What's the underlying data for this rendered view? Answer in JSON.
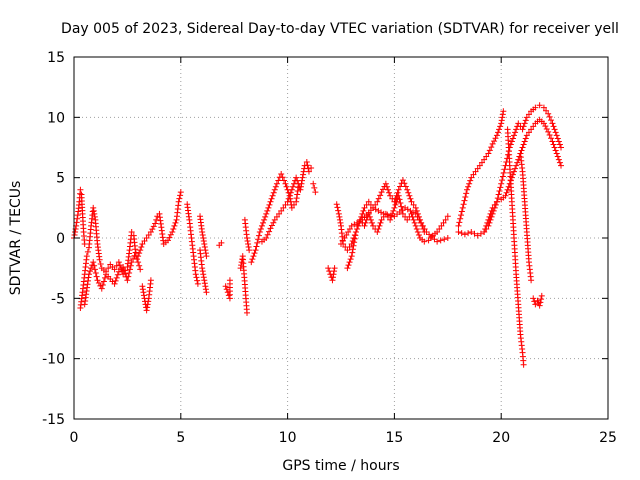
{
  "chart_data": {
    "type": "scatter",
    "title": "Day 005 of 2023, Sidereal Day-to-day VTEC variation (SDTVAR) for receiver yell",
    "xlabel": "GPS time / hours",
    "ylabel": "SDTVAR / TECUs",
    "xlim": [
      0,
      25
    ],
    "ylim": [
      -15,
      15
    ],
    "xticks": [
      0,
      5,
      10,
      15,
      20,
      25
    ],
    "yticks": [
      -15,
      -10,
      -5,
      0,
      5,
      10,
      15
    ],
    "grid": true,
    "marker": "+",
    "series": [
      {
        "name": "SDTVAR",
        "color": "#ff0000",
        "segments": [
          [
            [
              0.0,
              0.0
            ],
            [
              0.1,
              1.0
            ],
            [
              0.2,
              2.2
            ],
            [
              0.25,
              3.0
            ],
            [
              0.3,
              4.0
            ],
            [
              0.35,
              3.6
            ],
            [
              0.4,
              2.0
            ],
            [
              0.45,
              0.5
            ],
            [
              0.5,
              -0.5
            ]
          ],
          [
            [
              0.3,
              -5.8
            ],
            [
              0.4,
              -4.5
            ],
            [
              0.5,
              -3.0
            ],
            [
              0.6,
              -1.5
            ],
            [
              0.7,
              -0.8
            ],
            [
              0.8,
              1.0
            ],
            [
              0.9,
              2.5
            ],
            [
              1.0,
              1.5
            ],
            [
              1.1,
              -0.5
            ],
            [
              1.2,
              -1.8
            ],
            [
              1.3,
              -2.5
            ],
            [
              1.5,
              -2.8
            ],
            [
              1.7,
              -2.2
            ],
            [
              1.9,
              -2.6
            ],
            [
              2.1,
              -2.0
            ],
            [
              2.3,
              -3.0
            ],
            [
              2.5,
              -2.4
            ],
            [
              2.6,
              -1.0
            ],
            [
              2.7,
              0.5
            ],
            [
              2.8,
              0.2
            ],
            [
              2.9,
              -1.5
            ],
            [
              3.0,
              -2.0
            ],
            [
              3.1,
              -2.6
            ]
          ],
          [
            [
              0.5,
              -5.5
            ],
            [
              0.7,
              -3.0
            ],
            [
              0.9,
              -2.0
            ],
            [
              1.1,
              -3.5
            ],
            [
              1.3,
              -4.2
            ],
            [
              1.5,
              -3.0
            ],
            [
              1.7,
              -3.4
            ],
            [
              1.9,
              -3.8
            ],
            [
              2.1,
              -2.8
            ],
            [
              2.3,
              -2.4
            ],
            [
              2.5,
              -3.5
            ],
            [
              2.7,
              -2.0
            ],
            [
              2.9,
              -1.2
            ]
          ],
          [
            [
              3.2,
              -4.0
            ],
            [
              3.3,
              -5.0
            ],
            [
              3.4,
              -6.0
            ],
            [
              3.5,
              -5.0
            ],
            [
              3.6,
              -3.5
            ]
          ],
          [
            [
              3.0,
              -1.5
            ],
            [
              3.2,
              -0.5
            ],
            [
              3.4,
              0.0
            ],
            [
              3.6,
              0.5
            ],
            [
              3.8,
              1.2
            ],
            [
              3.9,
              1.8
            ],
            [
              4.0,
              2.0
            ],
            [
              4.2,
              -0.5
            ],
            [
              4.4,
              -0.2
            ],
            [
              4.6,
              0.5
            ],
            [
              4.8,
              1.5
            ],
            [
              4.9,
              3.0
            ],
            [
              5.0,
              3.8
            ]
          ],
          [
            [
              5.3,
              2.8
            ],
            [
              5.4,
              1.5
            ],
            [
              5.5,
              0.0
            ],
            [
              5.6,
              -1.5
            ],
            [
              5.7,
              -3.0
            ],
            [
              5.8,
              -3.8
            ]
          ],
          [
            [
              5.9,
              -1.0
            ],
            [
              6.0,
              -2.5
            ],
            [
              6.1,
              -3.5
            ],
            [
              6.2,
              -4.5
            ]
          ],
          [
            [
              5.9,
              1.8
            ],
            [
              6.0,
              0.5
            ],
            [
              6.1,
              -0.5
            ],
            [
              6.2,
              -1.5
            ]
          ],
          [
            [
              6.8,
              -0.6
            ],
            [
              6.9,
              -0.4
            ]
          ],
          [
            [
              7.1,
              -4.0
            ],
            [
              7.2,
              -4.5
            ],
            [
              7.3,
              -5.0
            ],
            [
              7.3,
              -3.5
            ]
          ],
          [
            [
              7.8,
              -2.5
            ],
            [
              7.9,
              -1.5
            ],
            [
              8.1,
              -6.2
            ]
          ],
          [
            [
              8.0,
              1.5
            ],
            [
              8.1,
              0.0
            ],
            [
              8.2,
              -1.0
            ]
          ],
          [
            [
              8.3,
              -2.0
            ],
            [
              8.5,
              -1.0
            ],
            [
              8.7,
              0.5
            ],
            [
              8.9,
              1.5
            ],
            [
              9.1,
              2.5
            ],
            [
              9.3,
              3.5
            ],
            [
              9.5,
              4.5
            ],
            [
              9.7,
              5.3
            ],
            [
              9.9,
              4.5
            ],
            [
              10.1,
              3.5
            ],
            [
              10.2,
              2.5
            ],
            [
              10.4,
              3.0
            ],
            [
              10.5,
              4.2
            ]
          ],
          [
            [
              8.8,
              -0.3
            ],
            [
              9.0,
              0.0
            ],
            [
              9.2,
              0.8
            ],
            [
              9.4,
              1.5
            ],
            [
              9.6,
              2.0
            ],
            [
              9.8,
              2.5
            ],
            [
              10.0,
              3.0
            ],
            [
              10.2,
              4.0
            ],
            [
              10.4,
              5.0
            ],
            [
              10.5,
              4.5
            ],
            [
              10.6,
              4.0
            ],
            [
              10.7,
              5.0
            ],
            [
              10.8,
              6.0
            ],
            [
              10.9,
              6.3
            ],
            [
              11.0,
              5.5
            ],
            [
              11.1,
              5.8
            ]
          ],
          [
            [
              11.2,
              4.5
            ],
            [
              11.3,
              3.8
            ]
          ],
          [
            [
              11.9,
              -2.5
            ],
            [
              12.0,
              -3.0
            ],
            [
              12.1,
              -3.5
            ],
            [
              12.2,
              -2.5
            ]
          ],
          [
            [
              12.3,
              2.8
            ],
            [
              12.4,
              2.0
            ],
            [
              12.5,
              1.0
            ],
            [
              12.6,
              -0.5
            ],
            [
              12.8,
              -1.0
            ],
            [
              13.0,
              -0.5
            ],
            [
              13.2,
              0.5
            ],
            [
              13.4,
              1.5
            ],
            [
              13.6,
              2.5
            ],
            [
              13.8,
              3.0
            ],
            [
              14.0,
              2.5
            ],
            [
              14.2,
              3.0
            ],
            [
              14.4,
              3.8
            ],
            [
              14.6,
              4.5
            ],
            [
              14.8,
              3.5
            ],
            [
              15.0,
              3.0
            ],
            [
              15.2,
              4.0
            ],
            [
              15.4,
              4.8
            ],
            [
              15.6,
              4.0
            ],
            [
              15.8,
              3.0
            ],
            [
              16.0,
              2.5
            ],
            [
              16.2,
              1.5
            ],
            [
              16.4,
              0.5
            ]
          ],
          [
            [
              12.8,
              -2.5
            ],
            [
              13.0,
              -1.5
            ],
            [
              13.2,
              0.5
            ],
            [
              13.4,
              1.5
            ],
            [
              13.6,
              1.0
            ],
            [
              13.8,
              2.0
            ],
            [
              14.0,
              1.0
            ],
            [
              14.2,
              0.5
            ],
            [
              14.4,
              1.5
            ],
            [
              14.6,
              2.0
            ],
            [
              14.8,
              1.5
            ],
            [
              15.0,
              2.5
            ],
            [
              15.2,
              3.5
            ],
            [
              15.4,
              2.0
            ],
            [
              15.6,
              1.5
            ],
            [
              15.8,
              2.0
            ],
            [
              16.0,
              1.0
            ],
            [
              16.2,
              0.0
            ],
            [
              16.4,
              -0.3
            ],
            [
              16.6,
              -0.2
            ],
            [
              16.8,
              0.2
            ],
            [
              17.0,
              0.5
            ],
            [
              17.2,
              1.0
            ],
            [
              17.4,
              1.5
            ],
            [
              17.5,
              1.8
            ]
          ],
          [
            [
              12.5,
              -0.5
            ],
            [
              13.0,
              1.0
            ],
            [
              13.5,
              1.5
            ],
            [
              14.0,
              2.5
            ],
            [
              14.5,
              2.0
            ],
            [
              15.0,
              1.8
            ],
            [
              15.5,
              2.5
            ],
            [
              16.0,
              2.0
            ],
            [
              16.5,
              0.5
            ],
            [
              17.0,
              -0.3
            ],
            [
              17.5,
              0.0
            ]
          ],
          [
            [
              18.0,
              1.0
            ],
            [
              18.2,
              2.5
            ],
            [
              18.4,
              4.0
            ],
            [
              18.6,
              5.0
            ],
            [
              18.8,
              5.5
            ],
            [
              19.0,
              6.0
            ],
            [
              19.2,
              6.5
            ],
            [
              19.4,
              7.0
            ],
            [
              19.6,
              7.8
            ],
            [
              19.8,
              8.5
            ],
            [
              20.0,
              9.5
            ],
            [
              20.1,
              10.5
            ]
          ],
          [
            [
              18.0,
              0.5
            ],
            [
              18.3,
              0.3
            ],
            [
              18.6,
              0.5
            ],
            [
              18.9,
              0.2
            ],
            [
              19.2,
              0.5
            ],
            [
              19.4,
              1.0
            ],
            [
              19.6,
              2.0
            ],
            [
              19.8,
              3.0
            ],
            [
              20.0,
              4.5
            ],
            [
              20.2,
              6.0
            ],
            [
              20.4,
              7.5
            ],
            [
              20.6,
              8.5
            ],
            [
              20.8,
              9.5
            ],
            [
              21.0,
              9.0
            ],
            [
              21.2,
              10.0
            ],
            [
              21.4,
              10.5
            ],
            [
              21.6,
              10.8
            ],
            [
              21.8,
              11.0
            ],
            [
              22.0,
              10.8
            ],
            [
              22.2,
              10.3
            ],
            [
              22.4,
              9.5
            ],
            [
              22.6,
              8.5
            ],
            [
              22.8,
              7.5
            ]
          ],
          [
            [
              19.2,
              0.5
            ],
            [
              19.4,
              1.5
            ],
            [
              19.6,
              2.5
            ],
            [
              19.8,
              3.0
            ],
            [
              20.0,
              3.2
            ],
            [
              20.2,
              3.5
            ],
            [
              20.4,
              4.5
            ],
            [
              20.6,
              5.5
            ],
            [
              20.8,
              6.5
            ],
            [
              21.0,
              7.5
            ],
            [
              21.2,
              8.5
            ],
            [
              21.4,
              9.0
            ],
            [
              21.6,
              9.5
            ],
            [
              21.8,
              9.8
            ],
            [
              22.0,
              9.5
            ],
            [
              22.2,
              8.8
            ],
            [
              22.4,
              8.0
            ],
            [
              22.6,
              7.0
            ],
            [
              22.8,
              6.0
            ]
          ],
          [
            [
              20.3,
              9.0
            ],
            [
              20.4,
              6.0
            ],
            [
              20.5,
              3.0
            ],
            [
              20.6,
              0.0
            ],
            [
              20.7,
              -3.0
            ],
            [
              20.8,
              -5.5
            ],
            [
              20.9,
              -8.0
            ],
            [
              21.0,
              -9.5
            ],
            [
              21.05,
              -10.5
            ]
          ],
          [
            [
              20.9,
              7.0
            ],
            [
              21.0,
              5.5
            ],
            [
              21.1,
              3.0
            ],
            [
              21.2,
              0.5
            ],
            [
              21.3,
              -2.0
            ],
            [
              21.4,
              -3.5
            ]
          ],
          [
            [
              21.5,
              -5.0
            ],
            [
              21.6,
              -5.5
            ],
            [
              21.7,
              -5.2
            ],
            [
              21.8,
              -5.6
            ],
            [
              21.9,
              -4.8
            ]
          ]
        ]
      }
    ]
  }
}
